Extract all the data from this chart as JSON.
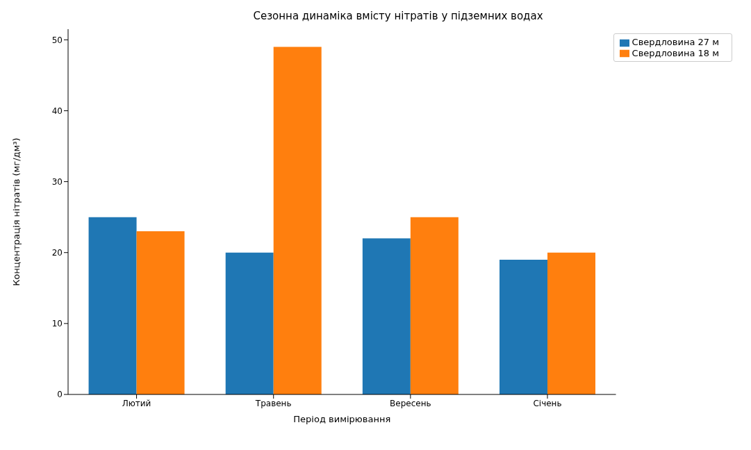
{
  "chart_data": {
    "type": "bar",
    "title": "Сезонна динаміка вмісту нітратів у підземних водах",
    "xlabel": "Період вимірювання",
    "ylabel": "Концентрація нітратів (мг/дм³)",
    "categories": [
      "Лютий",
      "Травень",
      "Вересень",
      "Січень"
    ],
    "series": [
      {
        "name": "Свердловина 27 м",
        "color": "#1f77b4",
        "values": [
          25,
          20,
          22,
          19
        ]
      },
      {
        "name": "Свердловина 18 м",
        "color": "#ff7f0e",
        "values": [
          23,
          49,
          25,
          20
        ]
      }
    ],
    "ylim": [
      0,
      51.5
    ],
    "yticks": [
      0,
      10,
      20,
      30,
      40,
      50
    ],
    "grid": false,
    "legend": "top right"
  }
}
